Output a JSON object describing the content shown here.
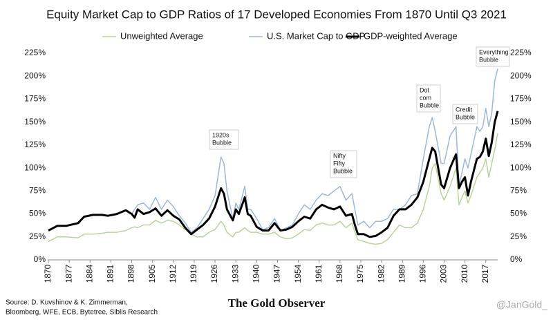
{
  "chart_data": {
    "type": "line",
    "title": "Equity Market Cap to GDP Ratios of 17 Developed Economies From 1870 Until Q3 2021",
    "x": [
      1870,
      1873,
      1876,
      1880,
      1882,
      1885,
      1888,
      1890,
      1893,
      1896,
      1898,
      1899,
      1900,
      1902,
      1904,
      1906,
      1908,
      1910,
      1912,
      1914,
      1916,
      1918,
      1920,
      1922,
      1924,
      1926,
      1928,
      1929,
      1930,
      1932,
      1933,
      1934,
      1936,
      1937,
      1938,
      1940,
      1942,
      1944,
      1946,
      1948,
      1950,
      1952,
      1954,
      1956,
      1958,
      1960,
      1962,
      1964,
      1966,
      1968,
      1970,
      1972,
      1973,
      1974,
      1976,
      1978,
      1980,
      1982,
      1984,
      1986,
      1988,
      1990,
      1992,
      1994,
      1996,
      1998,
      1999,
      2000,
      2002,
      2003,
      2005,
      2007,
      2008,
      2009,
      2010,
      2011,
      2012,
      2014,
      2015,
      2016,
      2017,
      2018,
      2019,
      2020,
      2021
    ],
    "series": [
      {
        "name": "Unweighted Average",
        "color": "#b9d39e",
        "width": 1.5,
        "values": [
          20,
          25,
          25,
          24,
          28,
          28,
          29,
          30,
          30,
          32,
          35,
          36,
          35,
          38,
          38,
          43,
          40,
          43,
          42,
          38,
          33,
          28,
          25,
          25,
          30,
          33,
          42,
          38,
          30,
          25,
          30,
          30,
          35,
          32,
          30,
          30,
          28,
          28,
          30,
          25,
          23,
          24,
          28,
          33,
          32,
          38,
          40,
          38,
          38,
          42,
          35,
          40,
          30,
          22,
          20,
          18,
          17,
          18,
          22,
          30,
          38,
          35,
          35,
          40,
          55,
          80,
          100,
          105,
          72,
          65,
          80,
          100,
          60,
          68,
          75,
          62,
          70,
          90,
          95,
          100,
          110,
          90,
          105,
          120,
          138
        ]
      },
      {
        "name": "U.S. Market Cap to GDP",
        "color": "#9db7d5",
        "width": 1.5,
        "values": [
          32,
          37,
          37,
          40,
          47,
          49,
          49,
          48,
          50,
          54,
          50,
          55,
          60,
          62,
          55,
          68,
          55,
          65,
          58,
          48,
          40,
          30,
          35,
          45,
          55,
          70,
          112,
          105,
          75,
          45,
          62,
          55,
          80,
          55,
          55,
          45,
          33,
          35,
          45,
          32,
          35,
          38,
          50,
          60,
          55,
          65,
          72,
          70,
          75,
          80,
          65,
          72,
          55,
          38,
          42,
          35,
          42,
          42,
          45,
          55,
          55,
          60,
          70,
          72,
          110,
          145,
          155,
          140,
          105,
          105,
          135,
          145,
          80,
          95,
          110,
          100,
          115,
          145,
          140,
          145,
          165,
          145,
          160,
          195,
          208
        ]
      },
      {
        "name": "GDP-weighted Average",
        "color": "#000000",
        "width": 3,
        "values": [
          32,
          37,
          37,
          40,
          47,
          49,
          49,
          48,
          50,
          54,
          50,
          46,
          55,
          50,
          52,
          56,
          48,
          54,
          48,
          44,
          35,
          28,
          33,
          38,
          45,
          58,
          78,
          72,
          55,
          43,
          55,
          50,
          68,
          50,
          48,
          36,
          32,
          32,
          40,
          32,
          33,
          36,
          42,
          47,
          45,
          55,
          60,
          57,
          55,
          58,
          48,
          50,
          38,
          28,
          28,
          25,
          26,
          30,
          35,
          48,
          55,
          55,
          60,
          68,
          85,
          110,
          122,
          118,
          82,
          78,
          100,
          115,
          78,
          85,
          90,
          70,
          85,
          110,
          112,
          118,
          132,
          113,
          128,
          150,
          162
        ]
      }
    ],
    "xlim": [
      1870,
      2021
    ],
    "xticks": [
      1870,
      1877,
      1884,
      1891,
      1898,
      1905,
      1912,
      1919,
      1926,
      1933,
      1940,
      1947,
      1954,
      1961,
      1968,
      1975,
      1982,
      1989,
      1996,
      2003,
      2010,
      2017
    ],
    "ylim": [
      0,
      225
    ],
    "yticks": [
      {
        "value": 0,
        "label": "0%"
      },
      {
        "value": 25,
        "label": "25%"
      },
      {
        "value": 50,
        "label": "50%"
      },
      {
        "value": 75,
        "label": "75%"
      },
      {
        "value": 100,
        "label": "100%"
      },
      {
        "value": 125,
        "label": "125%"
      },
      {
        "value": 150,
        "label": "150%"
      },
      {
        "value": 175,
        "label": "175%"
      },
      {
        "value": 200,
        "label": "200%"
      },
      {
        "value": 225,
        "label": "225%"
      }
    ],
    "grid": false,
    "legend": "top",
    "annotations": [
      {
        "lines": [
          "1920s",
          "Bubble"
        ]
      },
      {
        "lines": [
          "Nifty",
          "Fifty",
          "Bubble"
        ]
      },
      {
        "lines": [
          "Dot",
          "com",
          "Bubble"
        ]
      },
      {
        "lines": [
          "Credit",
          "Bubble"
        ]
      },
      {
        "lines": [
          "Everything",
          "Bubble"
        ]
      }
    ],
    "source": [
      "Source: D. Kuvshinov & K. Zimmerman,",
      "Bloomberg, WFE, ECB, Bytetree, Siblis Research"
    ],
    "brand": "The Gold Observer",
    "handle": "@JanGold_"
  }
}
